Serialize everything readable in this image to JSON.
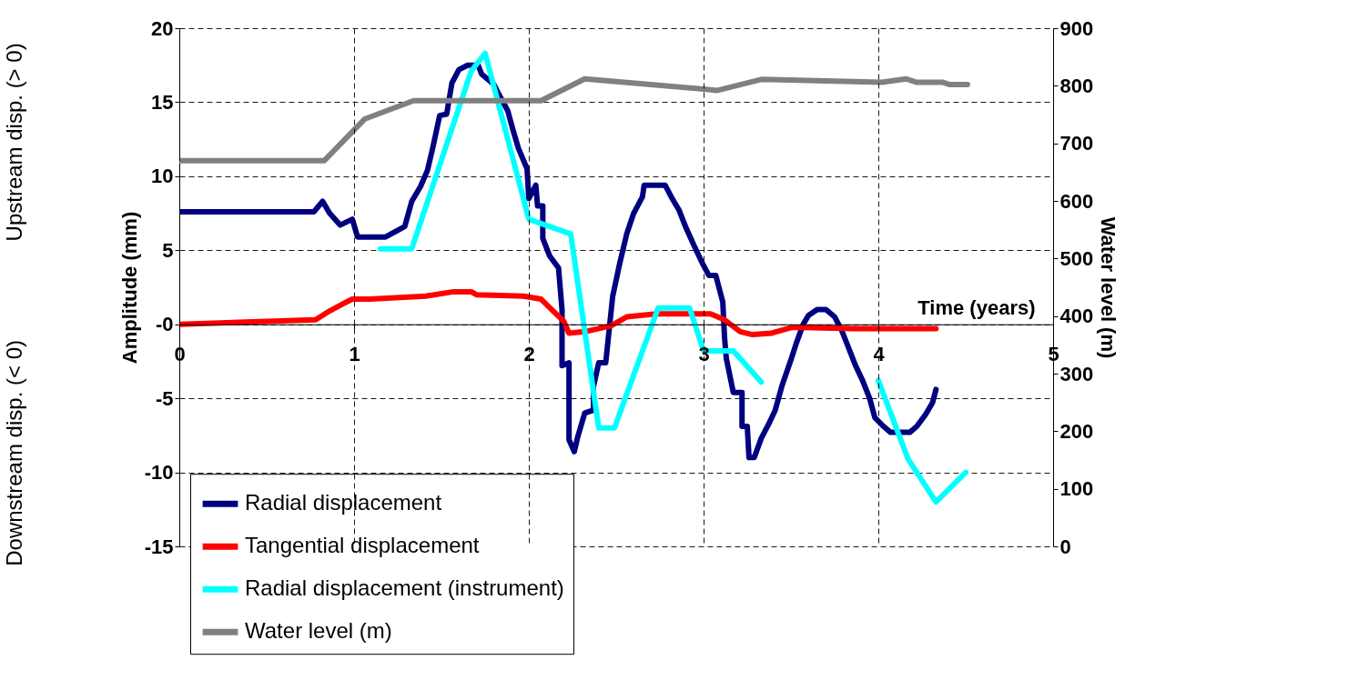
{
  "chart_data": {
    "type": "line",
    "xlabel": "Time (years)",
    "ylabel": "Amplitude (mm)",
    "y2label": "Water level (m)",
    "xlim": [
      0,
      5
    ],
    "xticks": [
      0,
      1,
      2,
      3,
      4,
      5
    ],
    "ylim": [
      -15,
      20
    ],
    "yticks": [
      -15,
      -10,
      -5,
      {
        "value": 0,
        "label": "-0"
      },
      5,
      10,
      15,
      20
    ],
    "y2lim": [
      0,
      900
    ],
    "y2ticks": [
      0,
      100,
      200,
      300,
      400,
      500,
      600,
      700,
      800,
      900
    ],
    "grid": true,
    "legend": "bottom left",
    "line_style": "solid",
    "marker": "none",
    "annotations": [
      "Upstream disp. (> 0)",
      "Downstream disp. (< 0)"
    ],
    "series": [
      {
        "name": "Radial displacement",
        "color": "#000080",
        "x": [
          0,
          0.77,
          0.82,
          0.86,
          0.92,
          0.99,
          1.02,
          1.18,
          1.29,
          1.33,
          1.38,
          1.42,
          1.45,
          1.49,
          1.53,
          1.56,
          1.6,
          1.65,
          1.71,
          1.73,
          1.8,
          1.83,
          1.88,
          1.91,
          1.94,
          1.99,
          2.0,
          2.04,
          2.05,
          2.08,
          2.08,
          2.12,
          2.17,
          2.19,
          2.19,
          2.23,
          2.23,
          2.26,
          2.28,
          2.32,
          2.37,
          2.37,
          2.4,
          2.44,
          2.48,
          2.52,
          2.56,
          2.6,
          2.65,
          2.66,
          2.78,
          2.82,
          2.86,
          2.9,
          2.95,
          2.99,
          3.03,
          3.07,
          3.11,
          3.12,
          3.13,
          3.17,
          3.22,
          3.22,
          3.25,
          3.26,
          3.29,
          3.33,
          3.37,
          3.41,
          3.45,
          3.5,
          3.53,
          3.57,
          3.6,
          3.65,
          3.7,
          3.75,
          3.79,
          3.83,
          3.87,
          3.91,
          3.95,
          3.98,
          4.03,
          4.07,
          4.18,
          4.22,
          4.27,
          4.31,
          4.33
        ],
        "values": [
          7.6,
          7.6,
          8.3,
          7.5,
          6.7,
          7.1,
          5.9,
          5.9,
          6.6,
          8.3,
          9.3,
          10.4,
          11.9,
          14.1,
          14.2,
          16.3,
          17.2,
          17.5,
          17.5,
          16.9,
          16.2,
          15.5,
          14.4,
          13.1,
          11.9,
          10.5,
          8.5,
          9.4,
          8.0,
          8.0,
          5.8,
          4.6,
          3.8,
          1.0,
          -2.8,
          -2.6,
          -7.8,
          -8.6,
          -7.6,
          -6.0,
          -5.8,
          -4.2,
          -2.6,
          -2.6,
          1.9,
          4.1,
          6.1,
          7.5,
          8.6,
          9.4,
          9.4,
          8.5,
          7.7,
          6.5,
          5.2,
          4.2,
          3.3,
          3.3,
          1.5,
          -0.9,
          -2.3,
          -4.6,
          -4.6,
          -6.9,
          -6.9,
          -9.0,
          -9.0,
          -7.7,
          -6.8,
          -5.8,
          -4.1,
          -2.4,
          -1.3,
          0.0,
          0.6,
          1.0,
          1.0,
          0.5,
          -0.4,
          -1.6,
          -2.8,
          -3.8,
          -5.0,
          -6.3,
          -6.9,
          -7.3,
          -7.3,
          -6.9,
          -6.1,
          -5.3,
          -4.4
        ]
      },
      {
        "name": "Tangential displacement",
        "color": "#ff0000",
        "x": [
          0,
          0.78,
          0.86,
          0.94,
          0.99,
          1.09,
          1.41,
          1.57,
          1.67,
          1.7,
          1.97,
          2.07,
          2.13,
          2.2,
          2.23,
          2.32,
          2.47,
          2.56,
          2.73,
          3.04,
          3.12,
          3.21,
          3.28,
          3.39,
          3.51,
          3.86,
          4.33
        ],
        "values": [
          0.0,
          0.3,
          0.9,
          1.4,
          1.7,
          1.7,
          1.9,
          2.2,
          2.2,
          2.0,
          1.9,
          1.7,
          1.0,
          0.2,
          -0.6,
          -0.5,
          -0.1,
          0.5,
          0.7,
          0.7,
          0.3,
          -0.5,
          -0.7,
          -0.6,
          -0.2,
          -0.3,
          -0.3
        ]
      },
      {
        "name": "Radial displacement (instrument)",
        "color": "#00ffff",
        "x": [
          1.15,
          1.33,
          1.67,
          1.75,
          2.0,
          2.24,
          2.4,
          2.49,
          2.74,
          2.92,
          3.0,
          3.17,
          3.33,
          3.6,
          4.0,
          4.17,
          4.33,
          4.5
        ],
        "values": [
          5.1,
          5.1,
          17.1,
          18.3,
          7.1,
          6.1,
          -7.0,
          -7.0,
          1.1,
          1.1,
          -1.8,
          -1.8,
          -3.9,
          null,
          -3.8,
          -9.1,
          -12.0,
          -10.0
        ]
      },
      {
        "name": "Water level (m)",
        "color": "#808080",
        "axis": "y2",
        "x": [
          0,
          0.83,
          1.06,
          1.34,
          2.07,
          2.32,
          3.08,
          3.33,
          4.02,
          4.16,
          4.22,
          4.37,
          4.41,
          4.51
        ],
        "values": [
          670,
          670,
          742,
          774,
          774,
          812,
          792,
          811,
          806,
          812,
          806,
          806,
          802,
          802
        ]
      }
    ]
  }
}
